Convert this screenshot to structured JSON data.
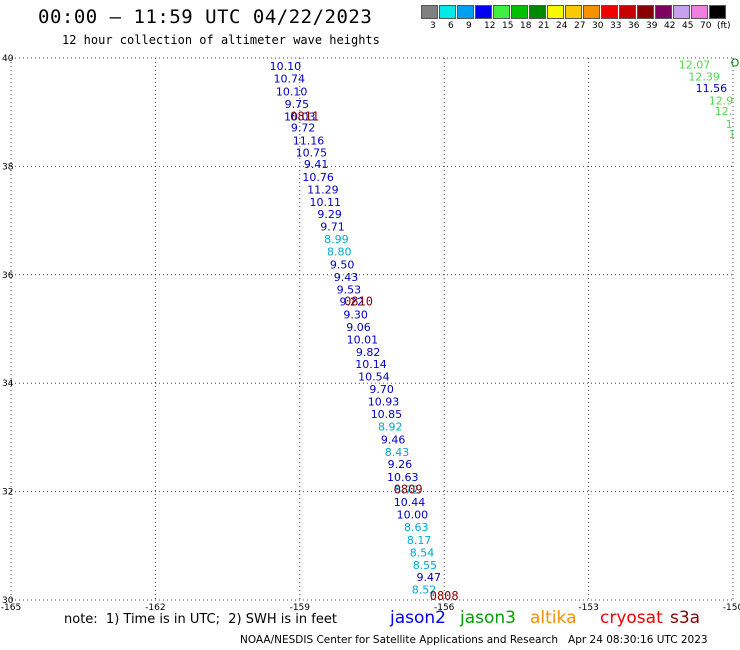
{
  "header": {
    "title": "00:00 – 11:59 UTC 04/22/2023",
    "subtitle": "12 hour collection of altimeter wave heights"
  },
  "legend": {
    "unit": "(ft)",
    "bins": [
      {
        "label": "3",
        "color": "#808080"
      },
      {
        "label": "6",
        "color": "#00e8e8"
      },
      {
        "label": "9",
        "color": "#00a0f0"
      },
      {
        "label": "12",
        "color": "#0000f0"
      },
      {
        "label": "15",
        "color": "#40f040"
      },
      {
        "label": "18",
        "color": "#00c000"
      },
      {
        "label": "21",
        "color": "#008800"
      },
      {
        "label": "24",
        "color": "#f8f800"
      },
      {
        "label": "27",
        "color": "#f8c800"
      },
      {
        "label": "30",
        "color": "#f89000"
      },
      {
        "label": "33",
        "color": "#f00000"
      },
      {
        "label": "36",
        "color": "#c80000"
      },
      {
        "label": "39",
        "color": "#880000"
      },
      {
        "label": "42",
        "color": "#800060"
      },
      {
        "label": "45",
        "color": "#c8a0f0"
      },
      {
        "label": "70",
        "color": "#f080e0"
      },
      {
        "label": "",
        "color": "#000000"
      }
    ]
  },
  "axes": {
    "lat_labels": [
      "40",
      "38",
      "36",
      "34",
      "32",
      "30"
    ],
    "lon_labels": [
      "-165",
      "-162",
      "-159",
      "-156",
      "-153",
      "-150"
    ]
  },
  "chart_data": {
    "type": "scatter",
    "x_range": [
      -165,
      -150
    ],
    "y_range": [
      30,
      40
    ],
    "grid": true,
    "track_points": [
      {
        "lon": -159.3,
        "lat": 39.85,
        "value": "10.10",
        "color": "#0000c8"
      },
      {
        "lon": -159.22,
        "lat": 39.62,
        "value": "10.74",
        "color": "#0000c8"
      },
      {
        "lon": -159.17,
        "lat": 39.38,
        "value": "10.10",
        "color": "#0000c8"
      },
      {
        "lon": -159.06,
        "lat": 39.15,
        "value": "9.75",
        "color": "#0000c8"
      },
      {
        "lon": -159.0,
        "lat": 38.92,
        "value": "10.03",
        "color": "#0000c8"
      },
      {
        "lon": -158.93,
        "lat": 38.72,
        "value": "9.72",
        "color": "#0000c8"
      },
      {
        "lon": -158.82,
        "lat": 38.48,
        "value": "11.16",
        "color": "#0000c8"
      },
      {
        "lon": -158.76,
        "lat": 38.26,
        "value": "10.75",
        "color": "#0000c8"
      },
      {
        "lon": -158.66,
        "lat": 38.04,
        "value": "9.41",
        "color": "#0000c8"
      },
      {
        "lon": -158.62,
        "lat": 37.8,
        "value": "10.76",
        "color": "#0000c8"
      },
      {
        "lon": -158.52,
        "lat": 37.57,
        "value": "11.29",
        "color": "#0000c8"
      },
      {
        "lon": -158.47,
        "lat": 37.34,
        "value": "10.11",
        "color": "#0000c8"
      },
      {
        "lon": -158.38,
        "lat": 37.12,
        "value": "9.29",
        "color": "#0000c8"
      },
      {
        "lon": -158.32,
        "lat": 36.89,
        "value": "9.71",
        "color": "#0000c8"
      },
      {
        "lon": -158.24,
        "lat": 36.66,
        "value": "8.99",
        "color": "#00a8d0"
      },
      {
        "lon": -158.18,
        "lat": 36.43,
        "value": "8.80",
        "color": "#00a8d0"
      },
      {
        "lon": -158.12,
        "lat": 36.19,
        "value": "9.50",
        "color": "#0000c8"
      },
      {
        "lon": -158.04,
        "lat": 35.96,
        "value": "9.43",
        "color": "#0000c8"
      },
      {
        "lon": -157.98,
        "lat": 35.73,
        "value": "9.53",
        "color": "#0000c8"
      },
      {
        "lon": -157.92,
        "lat": 35.51,
        "value": "9.22",
        "color": "#0000c8"
      },
      {
        "lon": -157.84,
        "lat": 35.27,
        "value": "9.30",
        "color": "#0000c8"
      },
      {
        "lon": -157.78,
        "lat": 35.04,
        "value": "9.06",
        "color": "#0000c8"
      },
      {
        "lon": -157.7,
        "lat": 34.81,
        "value": "10.01",
        "color": "#0000c8"
      },
      {
        "lon": -157.58,
        "lat": 34.58,
        "value": "9.82",
        "color": "#0000c8"
      },
      {
        "lon": -157.52,
        "lat": 34.35,
        "value": "10.14",
        "color": "#0000c8"
      },
      {
        "lon": -157.46,
        "lat": 34.12,
        "value": "10.54",
        "color": "#0000c8"
      },
      {
        "lon": -157.3,
        "lat": 33.89,
        "value": "9.70",
        "color": "#0000c8"
      },
      {
        "lon": -157.26,
        "lat": 33.66,
        "value": "10.93",
        "color": "#0000c8"
      },
      {
        "lon": -157.2,
        "lat": 33.43,
        "value": "10.85",
        "color": "#0000c8"
      },
      {
        "lon": -157.12,
        "lat": 33.2,
        "value": "8.92",
        "color": "#00a8d0"
      },
      {
        "lon": -157.06,
        "lat": 32.96,
        "value": "9.46",
        "color": "#0000c8"
      },
      {
        "lon": -156.98,
        "lat": 32.73,
        "value": "8.43",
        "color": "#00a8d0"
      },
      {
        "lon": -156.92,
        "lat": 32.51,
        "value": "9.26",
        "color": "#0000c8"
      },
      {
        "lon": -156.86,
        "lat": 32.27,
        "value": "10.63",
        "color": "#0000c8"
      },
      {
        "lon": -156.78,
        "lat": 32.04,
        "value": "8.72",
        "color": "#00a8d0"
      },
      {
        "lon": -156.72,
        "lat": 31.81,
        "value": "10.44",
        "color": "#0000c8"
      },
      {
        "lon": -156.66,
        "lat": 31.58,
        "value": "10.00",
        "color": "#0000c8"
      },
      {
        "lon": -156.58,
        "lat": 31.35,
        "value": "8.63",
        "color": "#00a8d0"
      },
      {
        "lon": -156.52,
        "lat": 31.11,
        "value": "8.17",
        "color": "#00a8d0"
      },
      {
        "lon": -156.46,
        "lat": 30.88,
        "value": "8.54",
        "color": "#00a8d0"
      },
      {
        "lon": -156.4,
        "lat": 30.65,
        "value": "8.55",
        "color": "#00a8d0"
      },
      {
        "lon": -156.32,
        "lat": 30.42,
        "value": "9.47",
        "color": "#0000c8"
      },
      {
        "lon": -156.42,
        "lat": 30.19,
        "value": "8.52",
        "color": "#00a8d0"
      }
    ],
    "time_labels": [
      {
        "lon": -158.9,
        "lat": 38.92,
        "text": "0811",
        "color": "#880000"
      },
      {
        "lon": -157.78,
        "lat": 35.51,
        "text": "0810",
        "color": "#880000"
      },
      {
        "lon": -156.75,
        "lat": 32.04,
        "text": "0809",
        "color": "#880000"
      },
      {
        "lon": -156.0,
        "lat": 30.07,
        "text": "0808",
        "color": "#880000"
      }
    ],
    "edge_points": [
      {
        "lon": -150.8,
        "lat": 39.88,
        "value": "12.07",
        "color": "#50d850"
      },
      {
        "lon": -150.6,
        "lat": 39.66,
        "value": "12.39",
        "color": "#50d850"
      },
      {
        "lon": -150.45,
        "lat": 39.45,
        "value": "11.56",
        "color": "#0000c8"
      },
      {
        "lon": -150.25,
        "lat": 39.22,
        "value": "12.9",
        "color": "#50d850"
      },
      {
        "lon": -150.2,
        "lat": 39.02,
        "value": "12.",
        "color": "#50d850"
      },
      {
        "lon": -150.08,
        "lat": 38.78,
        "value": "1",
        "color": "#50d850"
      },
      {
        "lon": -150.02,
        "lat": 38.6,
        "value": "1",
        "color": "#50d850"
      },
      {
        "lon": -149.96,
        "lat": 39.92,
        "value": "O",
        "color": "#008800"
      }
    ]
  },
  "footer": {
    "note": "note:  1) Time is in UTC;  2) SWH is in feet",
    "satellites": [
      {
        "name": "jason2",
        "color": "#0000f0"
      },
      {
        "name": "jason3",
        "color": "#00a000"
      },
      {
        "name": "altika",
        "color": "#f89000"
      },
      {
        "name": "cryosat",
        "color": "#f00000"
      },
      {
        "name": "s3a",
        "color": "#880000"
      }
    ],
    "credit": "NOAA/NESDIS Center for Satellite Applications and Research",
    "timestamp": "Apr 24 08:30:16 UTC 2023"
  }
}
